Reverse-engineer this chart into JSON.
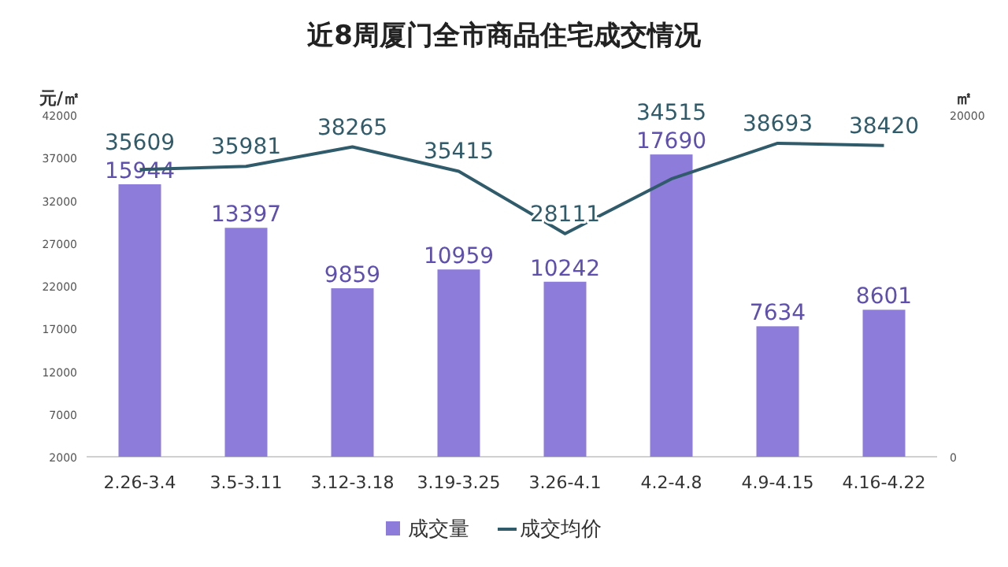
{
  "chart_data": {
    "type": "bar",
    "title": "近8周厦门全市商品住宅成交情况",
    "ylabel": "元/㎡",
    "y2label": "㎡",
    "categories": [
      "2.26-3.4",
      "3.5-3.11",
      "3.12-3.18",
      "3.19-3.25",
      "3.26-4.1",
      "4.2-4.8",
      "4.9-4.15",
      "4.16-4.22"
    ],
    "series": [
      {
        "name": "成交量",
        "axis": "y2",
        "color": "#8e7cdb",
        "values": [
          15944,
          13397,
          9859,
          10959,
          10242,
          17690,
          7634,
          8601
        ]
      },
      {
        "name": "成交均价",
        "type": "line",
        "color": "#2f5b6b",
        "values": [
          35609,
          35981,
          38265,
          35415,
          28111,
          34515,
          38693,
          38420
        ]
      }
    ],
    "ylim": [
      2000,
      42000
    ],
    "yticks": [
      2000,
      7000,
      12000,
      17000,
      22000,
      27000,
      32000,
      37000,
      42000
    ],
    "y2lim": [
      0,
      20000
    ],
    "y2ticks": [
      0,
      20000
    ],
    "data_labels": true,
    "grid": false,
    "legend": "bottom",
    "marker": "none",
    "line_style": "solid"
  }
}
